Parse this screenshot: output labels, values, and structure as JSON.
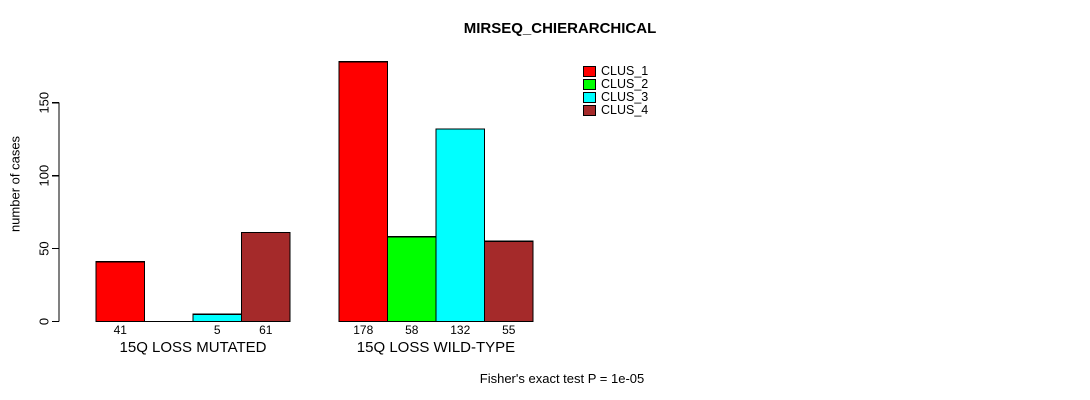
{
  "chart_data": {
    "type": "bar",
    "title": "MIRSEQ_CHIERARCHICAL",
    "ylabel": "number of cases",
    "xlabel": "",
    "ylim": [
      0,
      150
    ],
    "yticks": [
      0,
      50,
      100,
      150
    ],
    "grid": false,
    "legend_position": "top-right",
    "background_color": "#ffffff",
    "axis_color": "#000000",
    "bar_border_color": "#000000",
    "categories": [
      "15Q LOSS MUTATED",
      "15Q LOSS WILD-TYPE"
    ],
    "series": [
      {
        "name": "CLUS_1",
        "color": "#ff0000",
        "values": [
          41,
          178
        ]
      },
      {
        "name": "CLUS_2",
        "color": "#00ff00",
        "values": [
          0,
          58
        ]
      },
      {
        "name": "CLUS_3",
        "color": "#00ffff",
        "values": [
          5,
          132
        ]
      },
      {
        "name": "CLUS_4",
        "color": "#a52a2a",
        "values": [
          61,
          55
        ]
      }
    ],
    "bar_value_labels": [
      [
        "41",
        "",
        "5",
        "61"
      ],
      [
        "178",
        "58",
        "132",
        "55"
      ]
    ],
    "annotation": "Fisher's exact test P = 1e-05"
  }
}
